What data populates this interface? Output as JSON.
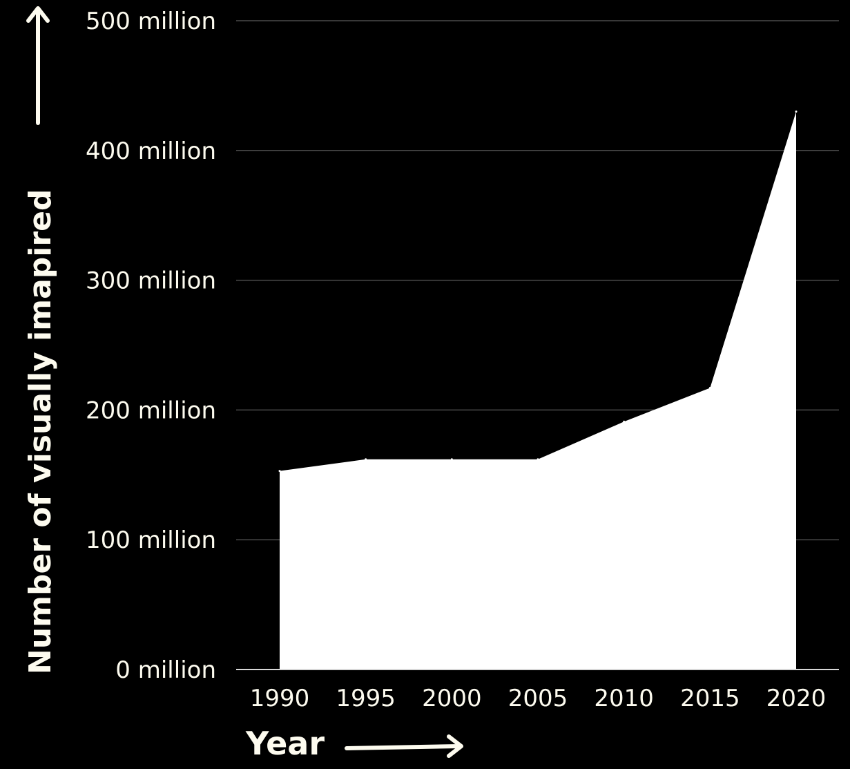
{
  "chart_data": {
    "type": "area",
    "xlabel": "Year",
    "ylabel": "Number of visually imapired",
    "x": [
      1990,
      1995,
      2000,
      2005,
      2010,
      2015,
      2020
    ],
    "x_tick_labels": [
      "1990",
      "1995",
      "2000",
      "2005",
      "2010",
      "2015",
      "2020"
    ],
    "y_tick_values": [
      0,
      100,
      200,
      300,
      400,
      500
    ],
    "y_tick_labels": [
      "0 million",
      "100 million",
      "200 million",
      "300 million",
      "400 million",
      "500 million"
    ],
    "series": [
      {
        "values": [
          153,
          162,
          162,
          162,
          191,
          217,
          430
        ]
      }
    ],
    "ylim": [
      0,
      500
    ],
    "y_unit": "million",
    "grid": true,
    "colors": {
      "background": "#000000",
      "area": "#ffffff",
      "text": "#fdfbef",
      "grid": "#4a4a4a",
      "baseline": "#d8d8d8"
    }
  }
}
